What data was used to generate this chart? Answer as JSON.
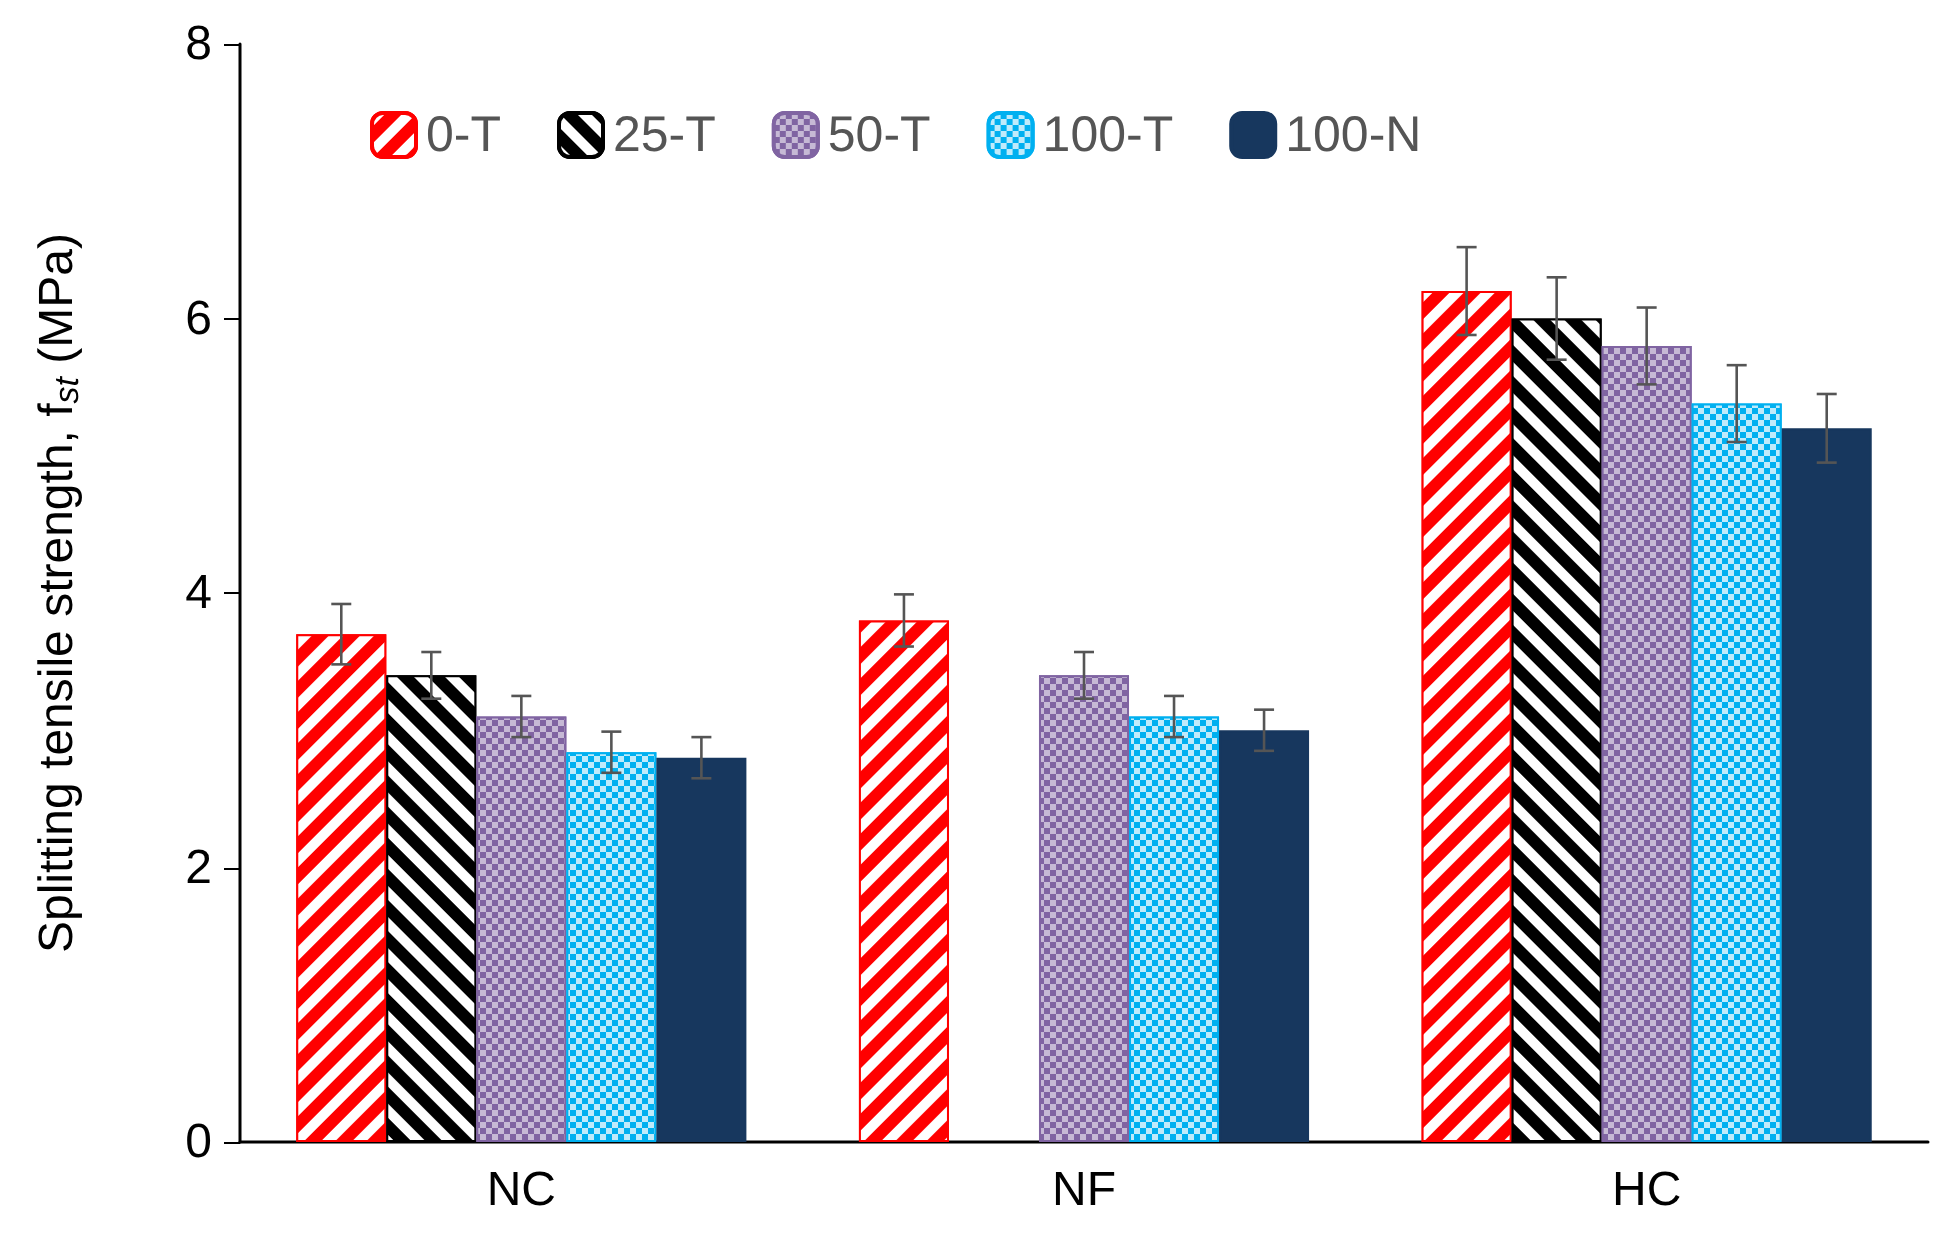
{
  "chart_data": {
    "type": "bar",
    "ylabel": "Splitting tensile strength, f$_{st}$ (MPa)",
    "categories": [
      "NC",
      "NF",
      "HC"
    ],
    "series": [
      {
        "name": "0-T",
        "color": "#ff0000",
        "values": [
          3.7,
          3.8,
          6.2
        ],
        "errors": [
          0.22,
          0.19,
          0.32
        ]
      },
      {
        "name": "25-T",
        "color": "#000000",
        "values": [
          3.4,
          null,
          6.0
        ],
        "errors": [
          0.17,
          null,
          0.3
        ]
      },
      {
        "name": "50-T",
        "color": "#8064a2",
        "values": [
          3.1,
          3.4,
          5.8
        ],
        "errors": [
          0.15,
          0.17,
          0.28
        ]
      },
      {
        "name": "100-T",
        "color": "#00b0f0",
        "values": [
          2.84,
          3.1,
          5.38
        ],
        "errors": [
          0.15,
          0.15,
          0.28
        ]
      },
      {
        "name": "100-N",
        "color": "#17375e",
        "values": [
          2.8,
          3.0,
          5.2
        ],
        "errors": [
          0.15,
          0.15,
          0.25
        ]
      }
    ],
    "ylim": [
      0,
      8
    ],
    "yticks": [
      0,
      2,
      4,
      6,
      8
    ],
    "grid": false,
    "legend": "top"
  }
}
